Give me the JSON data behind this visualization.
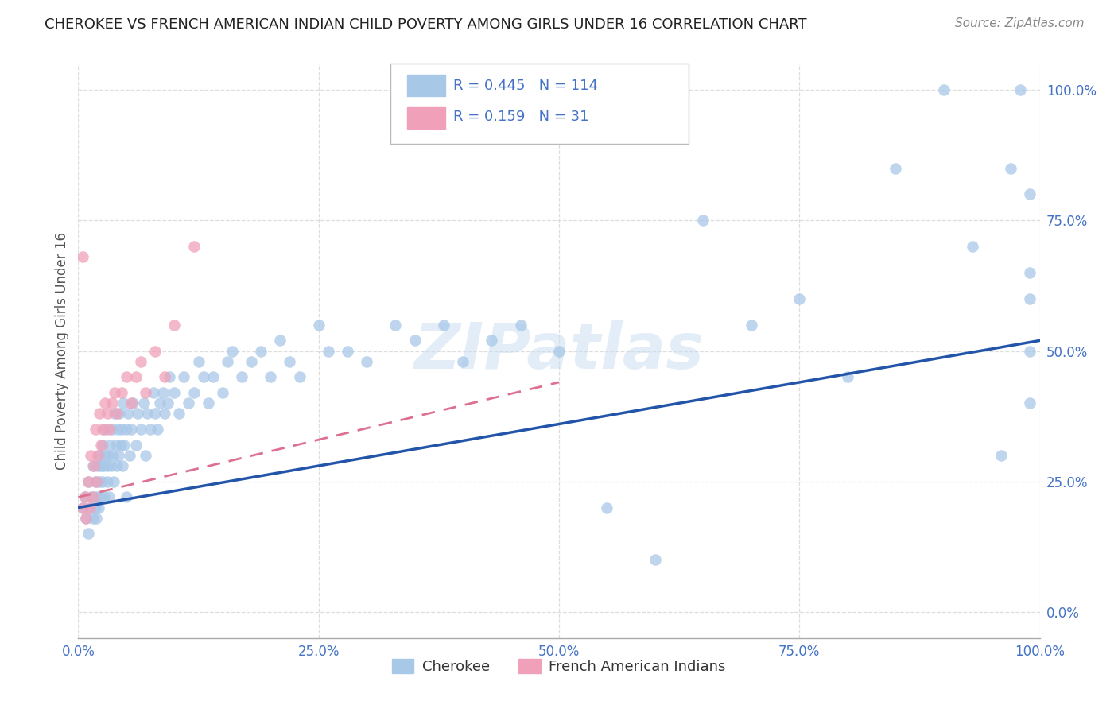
{
  "title": "CHEROKEE VS FRENCH AMERICAN INDIAN CHILD POVERTY AMONG GIRLS UNDER 16 CORRELATION CHART",
  "source": "Source: ZipAtlas.com",
  "ylabel": "Child Poverty Among Girls Under 16",
  "xlim": [
    0,
    1
  ],
  "ylim": [
    -0.05,
    1.05
  ],
  "xticks": [
    0,
    0.25,
    0.5,
    0.75,
    1.0
  ],
  "yticks": [
    0,
    0.25,
    0.5,
    0.75,
    1.0
  ],
  "xticklabels": [
    "0.0%",
    "25.0%",
    "50.0%",
    "75.0%",
    "100.0%"
  ],
  "yticklabels": [
    "0.0%",
    "25.0%",
    "50.0%",
    "75.0%",
    "100.0%"
  ],
  "cherokee_R": 0.445,
  "cherokee_N": 114,
  "french_R": 0.159,
  "french_N": 31,
  "cherokee_color": "#A8C8E8",
  "french_color": "#F0A0B8",
  "cherokee_line_color": "#2255AA",
  "french_line_color": "#DD7090",
  "watermark": "ZIPatlas",
  "background_color": "#FFFFFF",
  "grid_color": "#DDDDDD",
  "title_color": "#222222",
  "legend_text_color": "#4472C4",
  "cherokee_scatter_x": [
    0.005,
    0.007,
    0.008,
    0.01,
    0.01,
    0.012,
    0.013,
    0.015,
    0.015,
    0.016,
    0.018,
    0.018,
    0.019,
    0.02,
    0.02,
    0.021,
    0.022,
    0.022,
    0.023,
    0.024,
    0.025,
    0.025,
    0.026,
    0.027,
    0.028,
    0.028,
    0.03,
    0.03,
    0.031,
    0.032,
    0.033,
    0.034,
    0.035,
    0.036,
    0.037,
    0.038,
    0.039,
    0.04,
    0.041,
    0.042,
    0.043,
    0.044,
    0.045,
    0.046,
    0.047,
    0.048,
    0.05,
    0.05,
    0.052,
    0.053,
    0.055,
    0.057,
    0.06,
    0.062,
    0.065,
    0.068,
    0.07,
    0.072,
    0.075,
    0.078,
    0.08,
    0.082,
    0.085,
    0.088,
    0.09,
    0.093,
    0.095,
    0.1,
    0.105,
    0.11,
    0.115,
    0.12,
    0.125,
    0.13,
    0.135,
    0.14,
    0.15,
    0.155,
    0.16,
    0.17,
    0.18,
    0.19,
    0.2,
    0.21,
    0.22,
    0.23,
    0.25,
    0.26,
    0.28,
    0.3,
    0.33,
    0.35,
    0.38,
    0.4,
    0.43,
    0.46,
    0.5,
    0.55,
    0.6,
    0.65,
    0.7,
    0.75,
    0.8,
    0.85,
    0.9,
    0.93,
    0.96,
    0.97,
    0.98,
    0.99,
    0.99,
    0.99,
    0.99,
    0.99
  ],
  "cherokee_scatter_y": [
    0.2,
    0.22,
    0.18,
    0.15,
    0.25,
    0.2,
    0.22,
    0.18,
    0.28,
    0.22,
    0.2,
    0.25,
    0.18,
    0.22,
    0.28,
    0.2,
    0.25,
    0.3,
    0.22,
    0.28,
    0.25,
    0.32,
    0.28,
    0.22,
    0.3,
    0.35,
    0.25,
    0.28,
    0.3,
    0.22,
    0.32,
    0.28,
    0.35,
    0.3,
    0.25,
    0.38,
    0.32,
    0.28,
    0.35,
    0.3,
    0.38,
    0.32,
    0.35,
    0.28,
    0.4,
    0.32,
    0.35,
    0.22,
    0.38,
    0.3,
    0.35,
    0.4,
    0.32,
    0.38,
    0.35,
    0.4,
    0.3,
    0.38,
    0.35,
    0.42,
    0.38,
    0.35,
    0.4,
    0.42,
    0.38,
    0.4,
    0.45,
    0.42,
    0.38,
    0.45,
    0.4,
    0.42,
    0.48,
    0.45,
    0.4,
    0.45,
    0.42,
    0.48,
    0.5,
    0.45,
    0.48,
    0.5,
    0.45,
    0.52,
    0.48,
    0.45,
    0.55,
    0.5,
    0.5,
    0.48,
    0.55,
    0.52,
    0.55,
    0.48,
    0.52,
    0.55,
    0.5,
    0.2,
    0.1,
    0.75,
    0.55,
    0.6,
    0.45,
    0.85,
    1.0,
    0.7,
    0.3,
    0.85,
    1.0,
    0.5,
    0.6,
    0.8,
    0.4,
    0.65
  ],
  "french_scatter_x": [
    0.005,
    0.007,
    0.008,
    0.01,
    0.012,
    0.013,
    0.015,
    0.016,
    0.018,
    0.019,
    0.02,
    0.022,
    0.024,
    0.025,
    0.028,
    0.03,
    0.032,
    0.035,
    0.038,
    0.04,
    0.045,
    0.05,
    0.055,
    0.06,
    0.065,
    0.07,
    0.08,
    0.09,
    0.1,
    0.12,
    0.005
  ],
  "french_scatter_y": [
    0.2,
    0.22,
    0.18,
    0.25,
    0.2,
    0.3,
    0.22,
    0.28,
    0.35,
    0.25,
    0.3,
    0.38,
    0.32,
    0.35,
    0.4,
    0.38,
    0.35,
    0.4,
    0.42,
    0.38,
    0.42,
    0.45,
    0.4,
    0.45,
    0.48,
    0.42,
    0.5,
    0.45,
    0.55,
    0.7,
    0.68
  ],
  "cherokee_line_x0": 0.0,
  "cherokee_line_y0": 0.2,
  "cherokee_line_x1": 1.0,
  "cherokee_line_y1": 0.52,
  "french_line_x0": 0.0,
  "french_line_y0": 0.22,
  "french_line_x1": 0.5,
  "french_line_y1": 0.44
}
